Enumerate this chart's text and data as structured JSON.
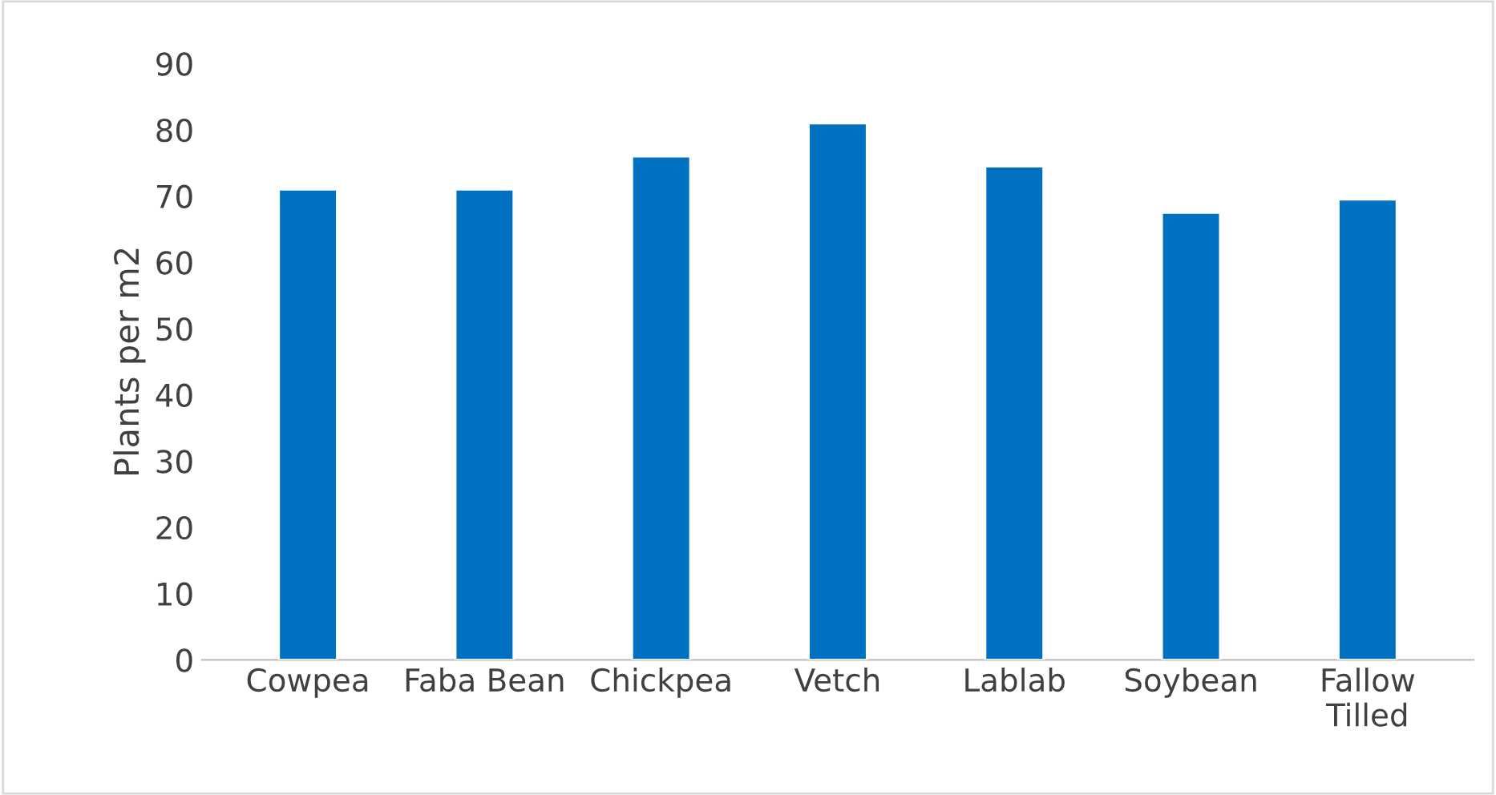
{
  "chart_data": {
    "type": "bar",
    "ylabel": "Plants per m2",
    "categories": [
      "Cowpea",
      "Faba Bean",
      "Chickpea",
      "Vetch",
      "Lablab",
      "Soybean",
      "Fallow\nTilled"
    ],
    "values": [
      71,
      71,
      76,
      81,
      74.5,
      67.5,
      69.5
    ],
    "color": "#0070c0",
    "ylim": [
      0,
      90
    ],
    "yticks": [
      0,
      10,
      20,
      30,
      40,
      50,
      60,
      70,
      80,
      90
    ],
    "grid": false,
    "legend": false
  }
}
